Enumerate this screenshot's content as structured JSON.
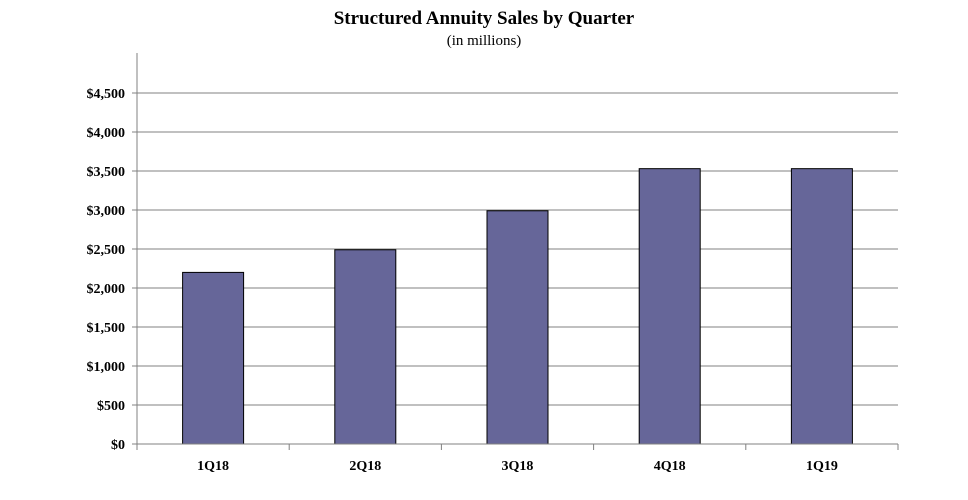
{
  "chart_data": {
    "type": "bar",
    "title": "Structured Annuity Sales by Quarter",
    "subtitle": "(in millions)",
    "categories": [
      "1Q18",
      "2Q18",
      "3Q18",
      "4Q18",
      "1Q19"
    ],
    "values": [
      2200,
      2490,
      2990,
      3530,
      3530
    ],
    "ylim": [
      0,
      4500
    ],
    "yticks": [
      0,
      500,
      1000,
      1500,
      2000,
      2500,
      3000,
      3500,
      4000,
      4500
    ],
    "ytick_labels": [
      "$0",
      "$500",
      "$1,000",
      "$1,500",
      "$2,000",
      "$2,500",
      "$3,000",
      "$3,500",
      "$4,000",
      "$4,500"
    ],
    "grid": true,
    "bar_color": "#666699",
    "xlabel": "",
    "ylabel": ""
  }
}
